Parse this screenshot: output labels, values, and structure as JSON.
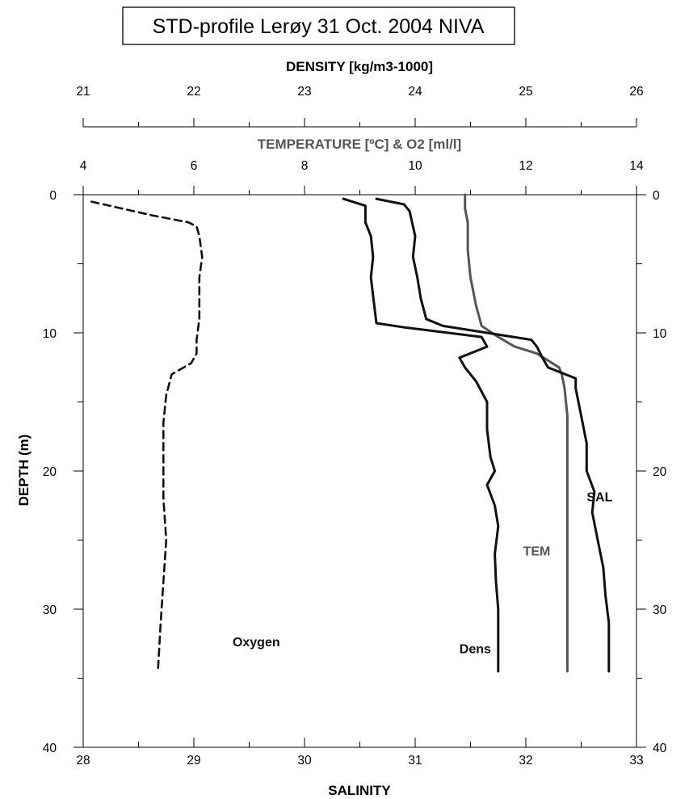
{
  "chart_data": {
    "type": "line",
    "title": "STD-profile Lerøy 31 Oct. 2004 NIVA",
    "grid": false,
    "colors": {
      "dark": "#111111",
      "grey": "#555555"
    },
    "y_axis": {
      "label": "DEPTH  (m)",
      "range": [
        0,
        40
      ],
      "inverted": true,
      "ticks": [
        "0",
        "10",
        "20",
        "30",
        "40"
      ]
    },
    "density_axis": {
      "label": "DENSITY [kg/m3-1000]",
      "range": [
        21,
        26
      ],
      "ticks": [
        "21",
        "22",
        "23",
        "24",
        "25",
        "26"
      ]
    },
    "temperature_axis": {
      "label": "TEMPERATURE  [ºC] & O2 [ml/l]",
      "range": [
        4,
        14
      ],
      "ticks": [
        "4",
        "6",
        "8",
        "10",
        "12",
        "14"
      ]
    },
    "salinity_axis": {
      "label": "SALINITY",
      "range": [
        28,
        33
      ],
      "ticks": [
        "28",
        "29",
        "30",
        "31",
        "32",
        "33"
      ]
    },
    "series": [
      {
        "name": "Oxygen",
        "axis": "temperature",
        "style": "dashed",
        "color": "#111111",
        "depth": [
          0.5,
          1.5,
          2.0,
          2.3,
          3.0,
          4.5,
          6.0,
          7.5,
          9.0,
          10.5,
          11.5,
          12.2,
          13.0,
          14.5,
          16.5,
          19.0,
          22.0,
          25.0,
          28.0,
          31.0,
          34.5
        ],
        "value": [
          4.15,
          5.25,
          5.9,
          6.05,
          6.1,
          6.15,
          6.1,
          6.1,
          6.1,
          6.05,
          6.05,
          5.95,
          5.6,
          5.5,
          5.45,
          5.45,
          5.45,
          5.5,
          5.45,
          5.4,
          5.35
        ]
      },
      {
        "name": "TEM",
        "axis": "temperature",
        "style": "solid",
        "color": "#555555",
        "depth": [
          0.0,
          1.0,
          2.0,
          4.0,
          6.0,
          8.0,
          9.5,
          10.3,
          11.0,
          11.5,
          12.0,
          12.5,
          13.0,
          14.0,
          16.0,
          20.0,
          25.0,
          30.0,
          34.5
        ],
        "value": [
          10.9,
          10.9,
          10.95,
          10.95,
          11.0,
          11.1,
          11.2,
          11.5,
          11.8,
          12.2,
          12.4,
          12.6,
          12.65,
          12.7,
          12.75,
          12.75,
          12.75,
          12.75,
          12.75
        ]
      },
      {
        "name": "SAL",
        "axis": "salinity",
        "style": "solid",
        "color": "#111111",
        "depth": [
          0.3,
          0.7,
          1.2,
          3.0,
          4.5,
          6.0,
          7.5,
          9.0,
          9.5,
          10.5,
          11.0,
          11.8,
          12.5,
          13.3,
          14.0,
          16.0,
          18.0,
          20.0,
          21.5,
          23.0,
          25.0,
          27.0,
          29.0,
          31.0,
          34.5
        ],
        "value": [
          30.65,
          30.9,
          30.95,
          31.0,
          30.98,
          31.02,
          31.05,
          31.1,
          31.25,
          32.05,
          32.1,
          32.15,
          32.2,
          32.45,
          32.45,
          32.5,
          32.55,
          32.55,
          32.62,
          32.6,
          32.65,
          32.7,
          32.72,
          32.75,
          32.75
        ]
      },
      {
        "name": "Dens",
        "axis": "density",
        "style": "solid",
        "color": "#111111",
        "depth": [
          0.3,
          0.8,
          2.0,
          3.0,
          4.5,
          6.0,
          8.0,
          9.3,
          9.6,
          10.3,
          11.0,
          11.8,
          12.5,
          13.5,
          15.0,
          17.0,
          19.0,
          20.0,
          21.0,
          22.5,
          24.0,
          26.0,
          28.0,
          30.0,
          32.0,
          34.5
        ],
        "value": [
          23.35,
          23.55,
          23.55,
          23.6,
          23.62,
          23.6,
          23.63,
          23.65,
          23.9,
          24.6,
          24.65,
          24.4,
          24.45,
          24.55,
          24.65,
          24.65,
          24.68,
          24.72,
          24.65,
          24.72,
          24.75,
          24.72,
          24.73,
          24.75,
          24.75,
          24.75
        ]
      }
    ],
    "annotations": [
      "Oxygen",
      "Dens",
      "TEM",
      "SAL"
    ]
  }
}
